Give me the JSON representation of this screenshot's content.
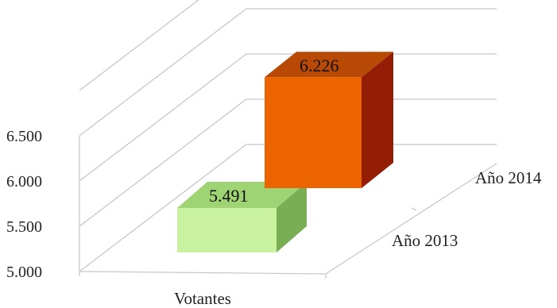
{
  "chart_data": {
    "type": "bar",
    "style": "3d-clustered-depth",
    "categories": [
      "Votantes"
    ],
    "series": [
      {
        "name": "Año 2013",
        "values": [
          5491
        ],
        "value_label": "5.491",
        "color": "#c9f2a0",
        "top_color": "#9fd474",
        "side_color": "#79ae55"
      },
      {
        "name": "Año 2014",
        "values": [
          6226
        ],
        "value_label": "6.226",
        "color": "#ec6400",
        "top_color": "#b84a06",
        "side_color": "#941d05"
      }
    ],
    "y_ticks": [
      {
        "value": 5000,
        "label": "5.000"
      },
      {
        "value": 5500,
        "label": "5.500"
      },
      {
        "value": 6000,
        "label": "6.000"
      },
      {
        "value": 6500,
        "label": "6.500"
      }
    ],
    "ylim": [
      5000,
      7000
    ],
    "grid": true,
    "gridline_color": "#c8c8c8"
  }
}
